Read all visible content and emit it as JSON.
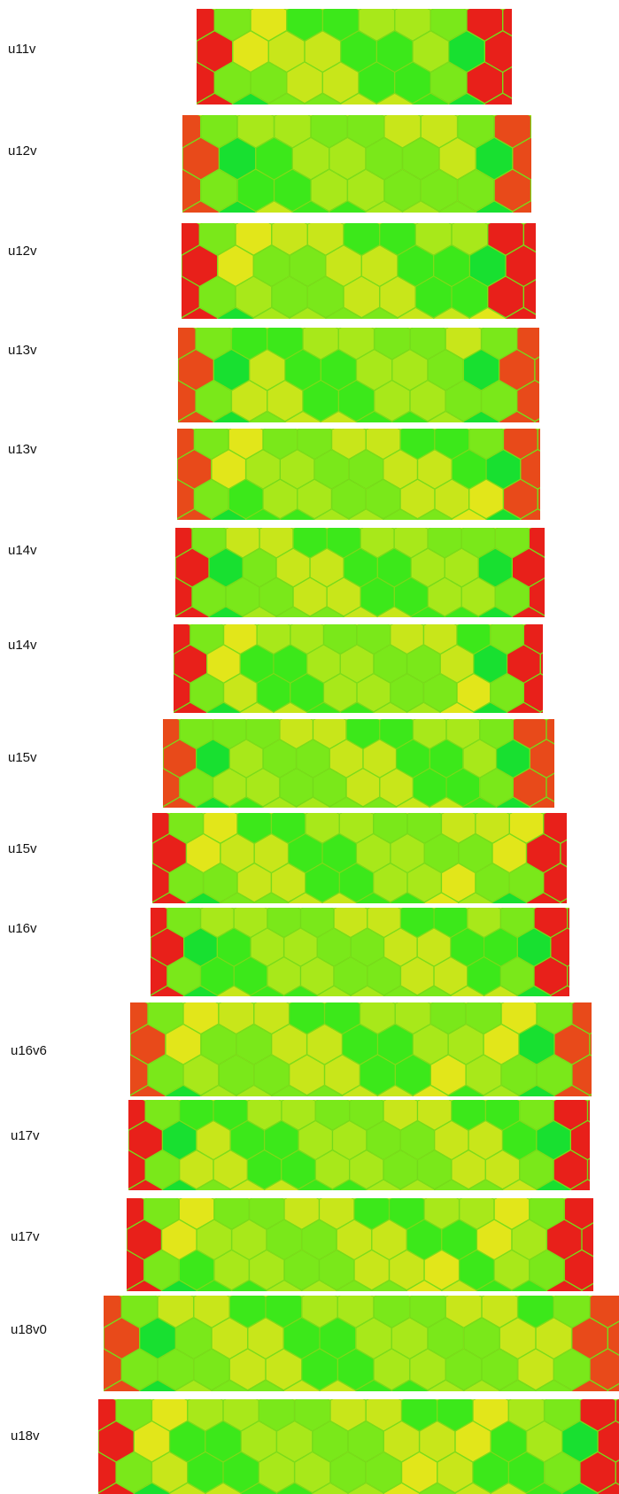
{
  "palette": {
    "red": "#e8201a",
    "orange": "#e84a1a",
    "green": "#18e030",
    "green_mid": "#3ce81a",
    "lime": "#7ae81a",
    "light_lime": "#a8e81a",
    "yellow_green": "#c8e61a",
    "yellow": "#e2e61a"
  },
  "strips": [
    {
      "label": "u11v",
      "edge": "red"
    },
    {
      "label": "u12v",
      "edge": "orange"
    },
    {
      "label": "u12v",
      "edge": "red"
    },
    {
      "label": "u13v",
      "edge": "orange"
    },
    {
      "label": "u13v",
      "edge": "orange"
    },
    {
      "label": "u14v",
      "edge": "red"
    },
    {
      "label": "u14v",
      "edge": "red"
    },
    {
      "label": "u15v",
      "edge": "orange"
    },
    {
      "label": "u15v",
      "edge": "red"
    },
    {
      "label": "u16v",
      "edge": "red"
    },
    {
      "label": "u16v6",
      "edge": "orange"
    },
    {
      "label": "u17v",
      "edge": "red"
    },
    {
      "label": "u17v",
      "edge": "red"
    },
    {
      "label": "u18v0",
      "edge": "orange"
    },
    {
      "label": "u18v",
      "edge": "red"
    }
  ]
}
